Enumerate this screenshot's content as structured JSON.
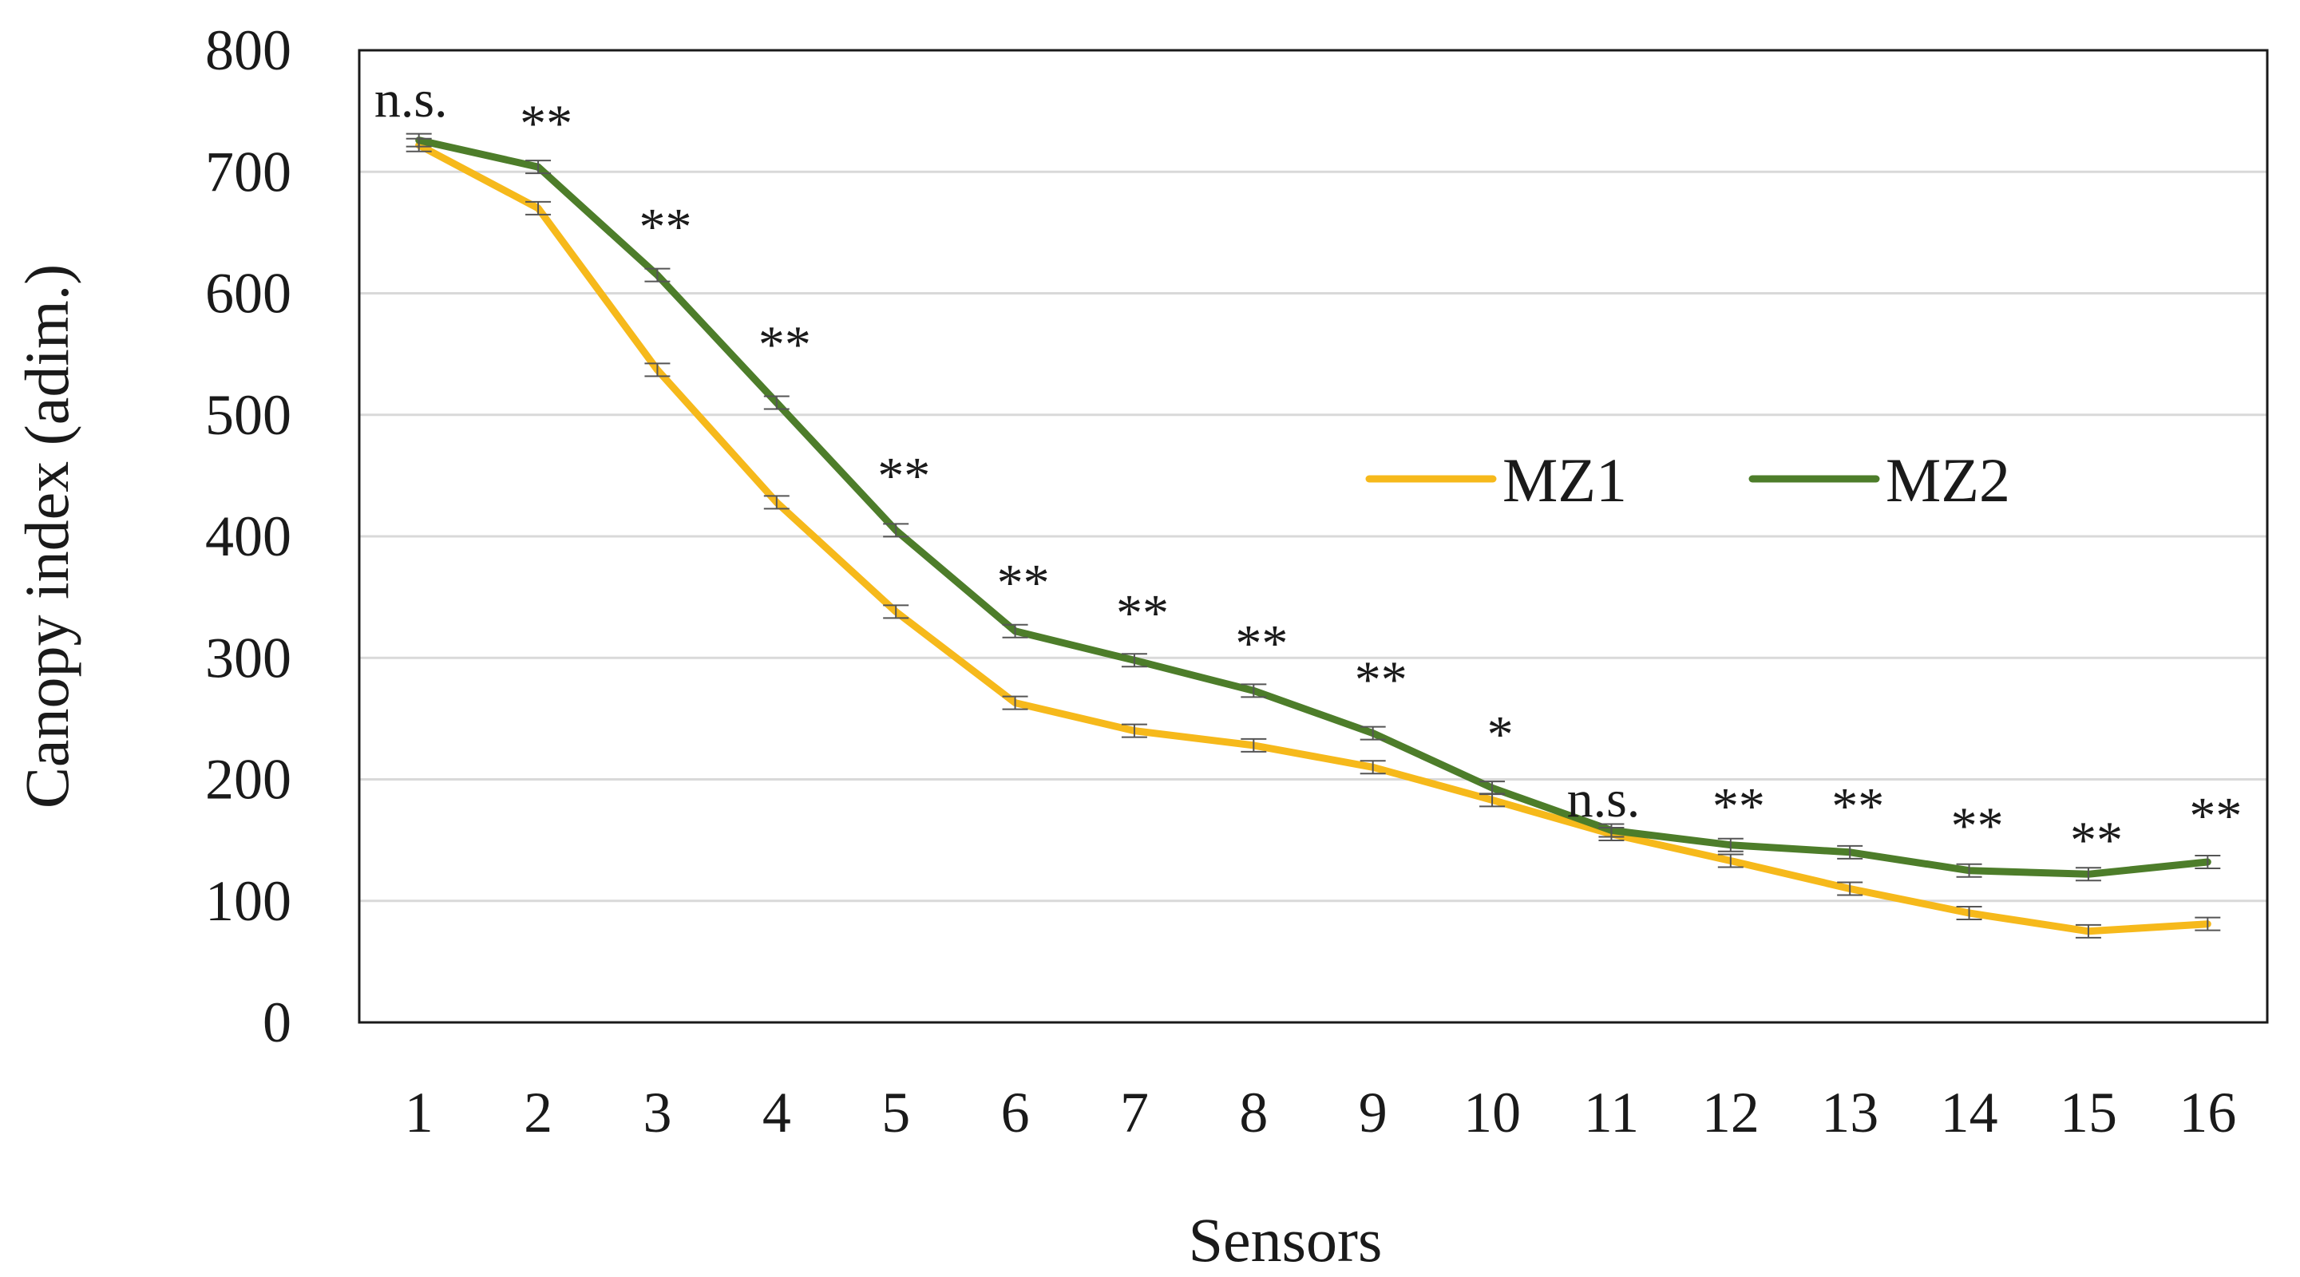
{
  "chart_data": {
    "type": "line",
    "title": "",
    "xlabel": "Sensors",
    "ylabel": "Canopy index (adim.)",
    "categories": [
      "1",
      "2",
      "3",
      "4",
      "5",
      "6",
      "7",
      "8",
      "9",
      "10",
      "11",
      "12",
      "13",
      "14",
      "15",
      "16"
    ],
    "ylim": [
      0,
      800
    ],
    "yticks": [
      0,
      100,
      200,
      300,
      400,
      500,
      600,
      700,
      800
    ],
    "grid": true,
    "legend_position": "center-right",
    "series": [
      {
        "name": "MZ1",
        "color": "#f6b91b",
        "values": [
          722,
          670,
          537,
          428,
          338,
          263,
          240,
          228,
          210,
          183,
          155,
          133,
          110,
          90,
          75,
          81
        ]
      },
      {
        "name": "MZ2",
        "color": "#4d7d2a",
        "values": [
          726,
          704,
          615,
          510,
          405,
          322,
          298,
          273,
          238,
          193,
          158,
          146,
          140,
          125,
          122,
          132
        ]
      }
    ],
    "annotations": [
      "n.s.",
      "**",
      "**",
      "**",
      "**",
      "**",
      "**",
      "**",
      "**",
      "*",
      "n.s.",
      "**",
      "**",
      "**",
      "**",
      "**"
    ],
    "annotation_values": [
      760,
      740,
      655,
      558,
      450,
      362,
      337,
      312,
      282,
      237,
      184,
      178,
      178,
      162,
      150,
      170
    ]
  }
}
